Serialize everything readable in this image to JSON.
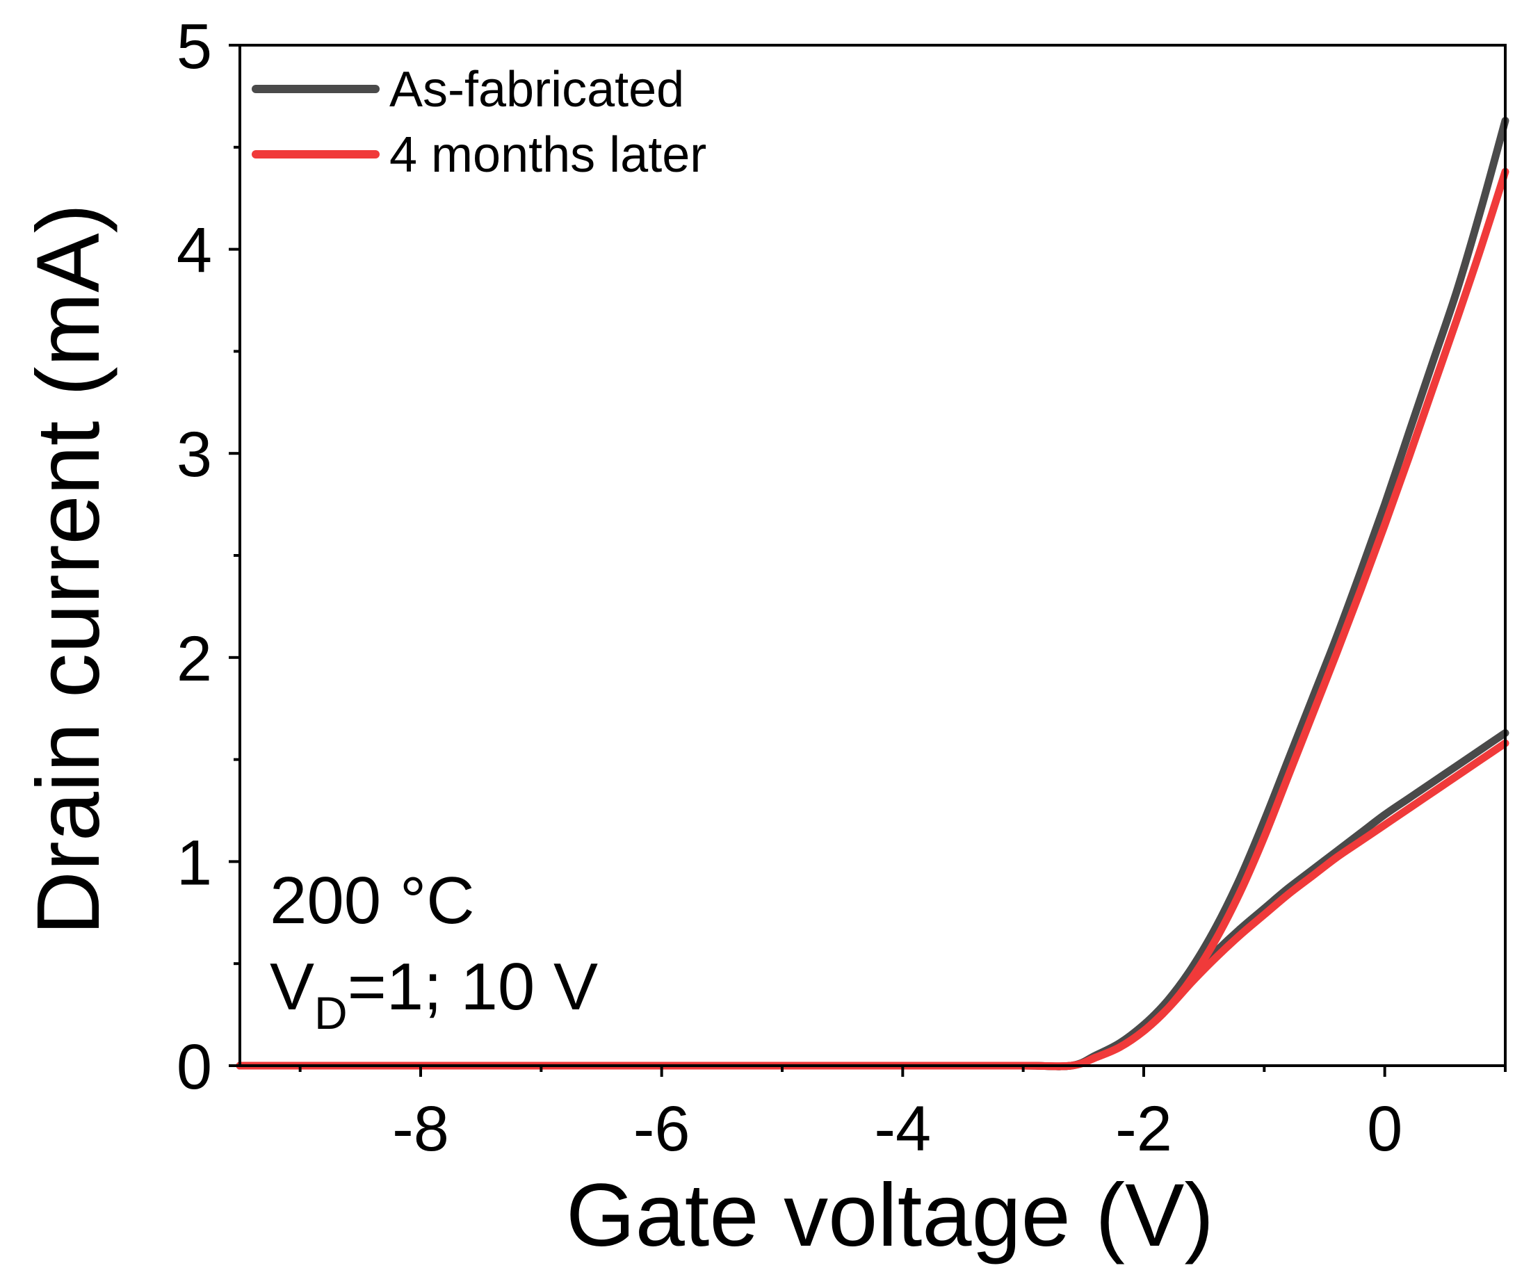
{
  "chart_data": {
    "type": "line",
    "title": "",
    "xlabel": "Gate voltage (V)",
    "ylabel": "Drain current (mA)",
    "xlim": [
      -9.5,
      1.0
    ],
    "ylim": [
      0,
      5
    ],
    "xticks": [
      -8,
      -6,
      -4,
      -2,
      0
    ],
    "xtick_labels": [
      "-8",
      "-6",
      "-4",
      "-2",
      "0"
    ],
    "yticks": [
      0,
      1,
      2,
      3,
      4,
      5
    ],
    "ytick_labels": [
      "0",
      "1",
      "2",
      "3",
      "4",
      "5"
    ],
    "grid": false,
    "legend_position": "top-left",
    "annotations": {
      "temperature": "200 °C",
      "vd_main": "V",
      "vd_sub": "D",
      "vd_rest": "=1; 10 V"
    },
    "series": [
      {
        "name": "As-fabricated",
        "label": "As-fabricated",
        "group": "VD=10 V",
        "color": "#4a4a4a",
        "x": [
          -9.5,
          -6,
          -4,
          -3,
          -2.6,
          -2.4,
          -2.2,
          -2.0,
          -1.8,
          -1.6,
          -1.4,
          -1.2,
          -1.0,
          -0.8,
          -0.6,
          -0.4,
          -0.2,
          0.0,
          0.2,
          0.4,
          0.6,
          0.8,
          1.0
        ],
        "y": [
          0,
          0,
          0,
          0,
          0.0,
          0.05,
          0.11,
          0.2,
          0.32,
          0.48,
          0.68,
          0.92,
          1.2,
          1.5,
          1.8,
          2.1,
          2.42,
          2.75,
          3.1,
          3.45,
          3.8,
          4.2,
          4.63
        ]
      },
      {
        "name": "As-fabricated",
        "label": "",
        "group": "VD=1 V",
        "color": "#4a4a4a",
        "x": [
          -9.5,
          -6,
          -4,
          -3,
          -2.6,
          -2.4,
          -2.2,
          -2.0,
          -1.8,
          -1.6,
          -1.4,
          -1.2,
          -1.0,
          -0.8,
          -0.6,
          -0.4,
          -0.2,
          0.0,
          0.2,
          0.4,
          0.6,
          0.8,
          1.0
        ],
        "y": [
          0,
          0,
          0,
          0,
          0.0,
          0.05,
          0.11,
          0.2,
          0.31,
          0.44,
          0.56,
          0.67,
          0.77,
          0.87,
          0.96,
          1.05,
          1.14,
          1.23,
          1.31,
          1.39,
          1.47,
          1.55,
          1.63
        ]
      },
      {
        "name": "4 months later",
        "label": "4 months later",
        "group": "VD=10 V",
        "color": "#f03a3a",
        "x": [
          -9.5,
          -6,
          -4,
          -3,
          -2.6,
          -2.4,
          -2.2,
          -2.0,
          -1.8,
          -1.6,
          -1.4,
          -1.2,
          -1.0,
          -0.8,
          -0.6,
          -0.4,
          -0.2,
          0.0,
          0.2,
          0.4,
          0.6,
          0.8,
          1.0
        ],
        "y": [
          0,
          0,
          0,
          0,
          0.0,
          0.04,
          0.09,
          0.17,
          0.28,
          0.43,
          0.62,
          0.85,
          1.12,
          1.42,
          1.72,
          2.02,
          2.33,
          2.65,
          2.98,
          3.32,
          3.66,
          4.01,
          4.38
        ]
      },
      {
        "name": "4 months later",
        "label": "",
        "group": "VD=1 V",
        "color": "#f03a3a",
        "x": [
          -9.5,
          -6,
          -4,
          -3,
          -2.6,
          -2.4,
          -2.2,
          -2.0,
          -1.8,
          -1.6,
          -1.4,
          -1.2,
          -1.0,
          -0.8,
          -0.6,
          -0.4,
          -0.2,
          0.0,
          0.2,
          0.4,
          0.6,
          0.8,
          1.0
        ],
        "y": [
          0,
          0,
          0,
          0,
          0.0,
          0.04,
          0.09,
          0.17,
          0.28,
          0.41,
          0.53,
          0.64,
          0.74,
          0.84,
          0.93,
          1.02,
          1.1,
          1.18,
          1.26,
          1.34,
          1.42,
          1.5,
          1.58
        ]
      }
    ]
  }
}
